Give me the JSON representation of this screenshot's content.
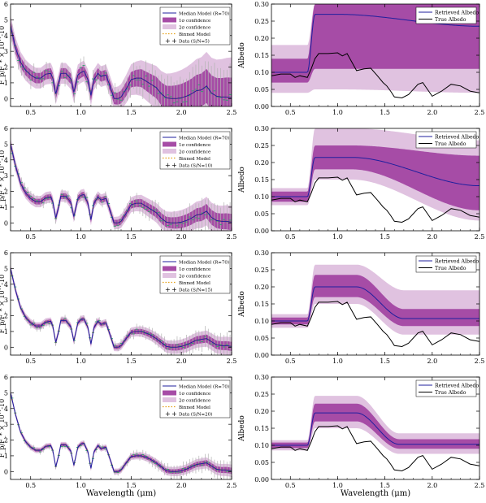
{
  "figure": {
    "xlabel": "Wavelength (μm)"
  },
  "colors": {
    "median_line": "#1f1f9e",
    "conf1": "#a64ca6",
    "conf2": "#e0c2e0",
    "binned": "#e5a117",
    "data": "#2ca06a",
    "data_err": "#b3b3b3",
    "true_line": "#000000"
  },
  "chart_data": [
    {
      "id": "spec1",
      "type": "line",
      "panel": "left",
      "ylabel": "F_p/F_* × 10^-10",
      "xlim": [
        0.3,
        2.5
      ],
      "ylim": [
        -0.5,
        6
      ],
      "xticks": [
        "0.5",
        "1.0",
        "1.5",
        "2.0",
        "2.5"
      ],
      "yticks": [
        "0",
        "1",
        "2",
        "3",
        "4",
        "5",
        "6"
      ],
      "legend": [
        "Median Model (R=70)",
        "1σ confidence",
        "2σ confidence",
        "Binned Model",
        "Data (S/N=5)"
      ],
      "band1_base": 0.55,
      "band2_base": 1.1,
      "band_grow": 2.4,
      "noise": 0.95,
      "x": [
        0.3,
        0.35,
        0.4,
        0.45,
        0.5,
        0.55,
        0.6,
        0.65,
        0.7,
        0.72,
        0.75,
        0.78,
        0.8,
        0.85,
        0.9,
        0.93,
        0.97,
        1.0,
        1.03,
        1.07,
        1.1,
        1.13,
        1.17,
        1.2,
        1.25,
        1.3,
        1.33,
        1.37,
        1.4,
        1.45,
        1.5,
        1.55,
        1.6,
        1.65,
        1.7,
        1.75,
        1.8,
        1.85,
        1.9,
        1.95,
        2.0,
        2.05,
        2.1,
        2.15,
        2.2,
        2.25,
        2.3,
        2.35,
        2.4,
        2.45,
        2.5
      ],
      "y": [
        4.6,
        3.2,
        2.3,
        1.8,
        1.5,
        1.3,
        1.3,
        1.55,
        1.6,
        1.3,
        0.3,
        1.0,
        1.6,
        1.6,
        1.25,
        0.4,
        1.5,
        1.65,
        1.75,
        1.2,
        0.2,
        1.2,
        1.6,
        1.4,
        1.5,
        0.6,
        0.0,
        0.0,
        0.1,
        0.6,
        1.2,
        1.3,
        1.3,
        1.1,
        0.9,
        0.7,
        0.3,
        0.05,
        0.0,
        0.0,
        0.05,
        0.15,
        0.3,
        0.5,
        0.55,
        0.8,
        0.35,
        0.15,
        0.1,
        0.1,
        0.05
      ]
    },
    {
      "id": "alb1",
      "type": "line",
      "panel": "right",
      "ylabel": "Albedo",
      "xlim": [
        0.3,
        2.5
      ],
      "ylim": [
        0,
        0.3
      ],
      "xticks": [
        "0.5",
        "1.0",
        "1.5",
        "2.0",
        "2.5"
      ],
      "yticks": [
        "0.00",
        "0.05",
        "0.10",
        "0.15",
        "0.20",
        "0.25",
        "0.30"
      ],
      "legend": [
        "Retrieved Albedo",
        "True Albedo"
      ],
      "step_x": 0.72,
      "median_pre": 0.1,
      "median_plateau": 0.27,
      "median_end": 0.235,
      "decay_start": 1.0,
      "decay_end": 2.5,
      "c1_pre": [
        0.07,
        0.14
      ],
      "c1_plateau": [
        0.11,
        0.3
      ],
      "c1_end": [
        0.11,
        0.3
      ],
      "c2_pre": [
        0.04,
        0.18
      ],
      "c2_plateau": [
        0.05,
        0.3
      ],
      "c2_end": [
        0.04,
        0.3
      ],
      "true_x": [
        0.3,
        0.4,
        0.5,
        0.55,
        0.6,
        0.68,
        0.72,
        0.76,
        0.8,
        0.9,
        1.0,
        1.05,
        1.1,
        1.15,
        1.2,
        1.28,
        1.35,
        1.42,
        1.48,
        1.52,
        1.56,
        1.6,
        1.68,
        1.75,
        1.85,
        1.9,
        1.95,
        2.0,
        2.1,
        2.2,
        2.3,
        2.4,
        2.5
      ],
      "true_y": [
        0.09,
        0.095,
        0.095,
        0.085,
        0.09,
        0.085,
        0.11,
        0.14,
        0.155,
        0.155,
        0.157,
        0.148,
        0.155,
        0.13,
        0.105,
        0.11,
        0.112,
        0.09,
        0.07,
        0.06,
        0.045,
        0.028,
        0.025,
        0.035,
        0.065,
        0.07,
        0.05,
        0.03,
        0.045,
        0.065,
        0.06,
        0.045,
        0.04
      ]
    },
    {
      "id": "spec2",
      "type": "line",
      "panel": "left",
      "ylabel": "F_p/F_* × 10^-10",
      "xlim": [
        0.3,
        2.5
      ],
      "ylim": [
        -0.5,
        6
      ],
      "xticks": [
        "0.5",
        "1.0",
        "1.5",
        "2.0",
        "2.5"
      ],
      "yticks": [
        "0",
        "1",
        "2",
        "3",
        "4",
        "5",
        "6"
      ],
      "legend": [
        "Median Model (R=70)",
        "1σ confidence",
        "2σ confidence",
        "Binned Model",
        "Data (S/N=10)"
      ],
      "band1_base": 0.3,
      "band2_base": 0.6,
      "band_grow": 1.6,
      "noise": 0.55,
      "x": [
        0.3,
        0.35,
        0.4,
        0.45,
        0.5,
        0.55,
        0.6,
        0.65,
        0.7,
        0.72,
        0.75,
        0.78,
        0.8,
        0.85,
        0.9,
        0.93,
        0.97,
        1.0,
        1.03,
        1.07,
        1.1,
        1.13,
        1.17,
        1.2,
        1.25,
        1.3,
        1.33,
        1.37,
        1.4,
        1.45,
        1.5,
        1.55,
        1.6,
        1.65,
        1.7,
        1.75,
        1.8,
        1.85,
        1.9,
        1.95,
        2.0,
        2.05,
        2.1,
        2.15,
        2.2,
        2.25,
        2.3,
        2.35,
        2.4,
        2.45,
        2.5
      ],
      "y": [
        5.0,
        3.6,
        2.5,
        1.9,
        1.55,
        1.35,
        1.35,
        1.6,
        1.65,
        1.35,
        0.3,
        1.05,
        1.7,
        1.7,
        1.3,
        0.4,
        1.55,
        1.75,
        1.8,
        1.25,
        0.2,
        1.25,
        1.65,
        1.45,
        1.55,
        0.6,
        0.0,
        0.0,
        0.1,
        0.6,
        1.15,
        1.25,
        1.25,
        1.05,
        0.85,
        0.65,
        0.3,
        0.05,
        0.0,
        0.0,
        0.05,
        0.15,
        0.3,
        0.5,
        0.55,
        0.75,
        0.35,
        0.15,
        0.1,
        0.1,
        0.05
      ]
    },
    {
      "id": "alb2",
      "type": "line",
      "panel": "right",
      "ylabel": "Albedo",
      "xlim": [
        0.3,
        2.5
      ],
      "ylim": [
        0,
        0.3
      ],
      "xticks": [
        "0.5",
        "1.0",
        "1.5",
        "2.0",
        "2.5"
      ],
      "yticks": [
        "0.00",
        "0.05",
        "0.10",
        "0.15",
        "0.20",
        "0.25",
        "0.30"
      ],
      "legend": [
        "Retrieved Albedo",
        "True Albedo"
      ],
      "step_x": 0.72,
      "median_pre": 0.1,
      "median_plateau": 0.215,
      "median_end": 0.132,
      "decay_start": 1.15,
      "decay_end": 2.5,
      "c1_pre": [
        0.085,
        0.115
      ],
      "c1_plateau": [
        0.18,
        0.25
      ],
      "c1_end": [
        0.06,
        0.22
      ],
      "c2_pre": [
        0.075,
        0.125
      ],
      "c2_plateau": [
        0.15,
        0.3
      ],
      "c2_end": [
        0.03,
        0.265
      ],
      "true_x": [
        0.3,
        0.4,
        0.5,
        0.55,
        0.6,
        0.68,
        0.72,
        0.76,
        0.8,
        0.9,
        1.0,
        1.05,
        1.1,
        1.15,
        1.2,
        1.28,
        1.35,
        1.42,
        1.48,
        1.52,
        1.56,
        1.6,
        1.68,
        1.75,
        1.85,
        1.9,
        1.95,
        2.0,
        2.1,
        2.2,
        2.3,
        2.4,
        2.5
      ],
      "true_y": [
        0.09,
        0.095,
        0.095,
        0.085,
        0.09,
        0.085,
        0.11,
        0.14,
        0.155,
        0.155,
        0.157,
        0.148,
        0.155,
        0.13,
        0.105,
        0.11,
        0.112,
        0.09,
        0.07,
        0.06,
        0.045,
        0.028,
        0.025,
        0.035,
        0.065,
        0.07,
        0.05,
        0.03,
        0.045,
        0.065,
        0.06,
        0.045,
        0.04
      ]
    },
    {
      "id": "spec3",
      "type": "line",
      "panel": "left",
      "ylabel": "F_p/F_* × 10^-10",
      "xlim": [
        0.3,
        2.5
      ],
      "ylim": [
        -0.5,
        6
      ],
      "xticks": [
        "0.5",
        "1.0",
        "1.5",
        "2.0",
        "2.5"
      ],
      "yticks": [
        "0",
        "1",
        "2",
        "3",
        "4",
        "5",
        "6"
      ],
      "legend": [
        "Median Model (R=70)",
        "1σ confidence",
        "2σ confidence",
        "Binned Model",
        "Data (S/N=15)"
      ],
      "band1_base": 0.2,
      "band2_base": 0.4,
      "band_grow": 1.2,
      "noise": 0.38,
      "x": [
        0.3,
        0.35,
        0.4,
        0.45,
        0.5,
        0.55,
        0.6,
        0.65,
        0.7,
        0.72,
        0.75,
        0.78,
        0.8,
        0.85,
        0.9,
        0.93,
        0.97,
        1.0,
        1.03,
        1.07,
        1.1,
        1.13,
        1.17,
        1.2,
        1.25,
        1.3,
        1.33,
        1.37,
        1.4,
        1.45,
        1.5,
        1.55,
        1.6,
        1.65,
        1.7,
        1.75,
        1.8,
        1.85,
        1.9,
        1.95,
        2.0,
        2.05,
        2.1,
        2.15,
        2.2,
        2.25,
        2.3,
        2.35,
        2.4,
        2.45,
        2.5
      ],
      "y": [
        5.0,
        3.6,
        2.5,
        1.9,
        1.55,
        1.35,
        1.35,
        1.6,
        1.65,
        1.35,
        0.3,
        1.05,
        1.7,
        1.7,
        1.3,
        0.4,
        1.55,
        1.75,
        1.8,
        1.25,
        0.2,
        1.25,
        1.65,
        1.45,
        1.55,
        0.6,
        0.0,
        0.0,
        0.1,
        0.55,
        0.95,
        1.0,
        1.0,
        0.9,
        0.75,
        0.55,
        0.3,
        0.05,
        0.0,
        0.0,
        0.05,
        0.15,
        0.3,
        0.45,
        0.5,
        0.55,
        0.35,
        0.15,
        0.1,
        0.1,
        0.05
      ]
    },
    {
      "id": "alb3",
      "type": "line",
      "panel": "right",
      "ylabel": "Albedo",
      "xlim": [
        0.3,
        2.5
      ],
      "ylim": [
        0,
        0.3
      ],
      "xticks": [
        "0.5",
        "1.0",
        "1.5",
        "2.0",
        "2.5"
      ],
      "yticks": [
        "0.00",
        "0.05",
        "0.10",
        "0.15",
        "0.20",
        "0.25",
        "0.30"
      ],
      "legend": [
        "Retrieved Albedo",
        "True Albedo"
      ],
      "step_x": 0.72,
      "median_pre": 0.1,
      "median_plateau": 0.2,
      "median_end": 0.107,
      "decay_start": 1.2,
      "decay_end": 1.7,
      "c1_pre": [
        0.09,
        0.11
      ],
      "c1_plateau": [
        0.17,
        0.235
      ],
      "c1_end": [
        0.085,
        0.135
      ],
      "c2_pre": [
        0.08,
        0.12
      ],
      "c2_plateau": [
        0.15,
        0.265
      ],
      "c2_end": [
        0.06,
        0.19
      ],
      "true_x": [
        0.3,
        0.4,
        0.5,
        0.55,
        0.6,
        0.68,
        0.72,
        0.76,
        0.8,
        0.9,
        1.0,
        1.05,
        1.1,
        1.15,
        1.2,
        1.28,
        1.35,
        1.42,
        1.48,
        1.52,
        1.56,
        1.6,
        1.68,
        1.75,
        1.85,
        1.9,
        1.95,
        2.0,
        2.1,
        2.2,
        2.3,
        2.4,
        2.5
      ],
      "true_y": [
        0.09,
        0.095,
        0.095,
        0.085,
        0.09,
        0.085,
        0.11,
        0.14,
        0.155,
        0.155,
        0.157,
        0.148,
        0.155,
        0.13,
        0.105,
        0.11,
        0.112,
        0.09,
        0.07,
        0.06,
        0.045,
        0.028,
        0.025,
        0.035,
        0.065,
        0.07,
        0.05,
        0.03,
        0.045,
        0.065,
        0.06,
        0.045,
        0.04
      ]
    },
    {
      "id": "spec4",
      "type": "line",
      "panel": "left",
      "ylabel": "F_p/F_* × 10^-10",
      "xlim": [
        0.3,
        2.5
      ],
      "ylim": [
        -0.5,
        6
      ],
      "xticks": [
        "0.5",
        "1.0",
        "1.5",
        "2.0",
        "2.5"
      ],
      "yticks": [
        "0",
        "1",
        "2",
        "3",
        "4",
        "5",
        "6"
      ],
      "legend": [
        "Median Model (R=70)",
        "1σ confidence",
        "2σ confidence",
        "Binned Model",
        "Data (S/N=20)"
      ],
      "band1_base": 0.15,
      "band2_base": 0.3,
      "band_grow": 1.0,
      "noise": 0.3,
      "x": [
        0.3,
        0.35,
        0.4,
        0.45,
        0.5,
        0.55,
        0.6,
        0.65,
        0.7,
        0.72,
        0.75,
        0.78,
        0.8,
        0.85,
        0.9,
        0.93,
        0.97,
        1.0,
        1.03,
        1.07,
        1.1,
        1.13,
        1.17,
        1.2,
        1.25,
        1.3,
        1.33,
        1.37,
        1.4,
        1.45,
        1.5,
        1.55,
        1.6,
        1.65,
        1.7,
        1.75,
        1.8,
        1.85,
        1.9,
        1.95,
        2.0,
        2.05,
        2.1,
        2.15,
        2.2,
        2.25,
        2.3,
        2.35,
        2.4,
        2.45,
        2.5
      ],
      "y": [
        5.0,
        3.6,
        2.5,
        1.9,
        1.55,
        1.35,
        1.35,
        1.6,
        1.65,
        1.35,
        0.3,
        1.05,
        1.7,
        1.7,
        1.3,
        0.4,
        1.55,
        1.75,
        1.8,
        1.25,
        0.2,
        1.25,
        1.65,
        1.45,
        1.55,
        0.6,
        0.0,
        0.0,
        0.1,
        0.55,
        0.95,
        1.0,
        1.0,
        0.9,
        0.75,
        0.55,
        0.3,
        0.05,
        0.0,
        0.0,
        0.05,
        0.15,
        0.3,
        0.45,
        0.5,
        0.55,
        0.35,
        0.15,
        0.1,
        0.1,
        0.05
      ]
    },
    {
      "id": "alb4",
      "type": "line",
      "panel": "right",
      "ylabel": "Albedo",
      "xlim": [
        0.3,
        2.5
      ],
      "ylim": [
        0,
        0.3
      ],
      "xticks": [
        "0.5",
        "1.0",
        "1.5",
        "2.0",
        "2.5"
      ],
      "yticks": [
        "0.00",
        "0.05",
        "0.10",
        "0.15",
        "0.20",
        "0.25",
        "0.30"
      ],
      "legend": [
        "Retrieved Albedo",
        "True Albedo"
      ],
      "step_x": 0.72,
      "median_pre": 0.1,
      "median_plateau": 0.195,
      "median_end": 0.103,
      "decay_start": 1.2,
      "decay_end": 1.65,
      "c1_pre": [
        0.092,
        0.108
      ],
      "c1_plateau": [
        0.17,
        0.222
      ],
      "c1_end": [
        0.09,
        0.118
      ],
      "c2_pre": [
        0.085,
        0.115
      ],
      "c2_plateau": [
        0.15,
        0.245
      ],
      "c2_end": [
        0.075,
        0.135
      ],
      "true_x": [
        0.3,
        0.4,
        0.5,
        0.55,
        0.6,
        0.68,
        0.72,
        0.76,
        0.8,
        0.9,
        1.0,
        1.05,
        1.1,
        1.15,
        1.2,
        1.28,
        1.35,
        1.42,
        1.48,
        1.52,
        1.56,
        1.6,
        1.68,
        1.75,
        1.85,
        1.9,
        1.95,
        2.0,
        2.1,
        2.2,
        2.3,
        2.4,
        2.5
      ],
      "true_y": [
        0.09,
        0.095,
        0.095,
        0.085,
        0.09,
        0.085,
        0.11,
        0.14,
        0.155,
        0.155,
        0.157,
        0.148,
        0.155,
        0.13,
        0.105,
        0.11,
        0.112,
        0.09,
        0.07,
        0.06,
        0.045,
        0.028,
        0.025,
        0.035,
        0.065,
        0.07,
        0.05,
        0.03,
        0.045,
        0.065,
        0.06,
        0.045,
        0.04
      ]
    }
  ]
}
